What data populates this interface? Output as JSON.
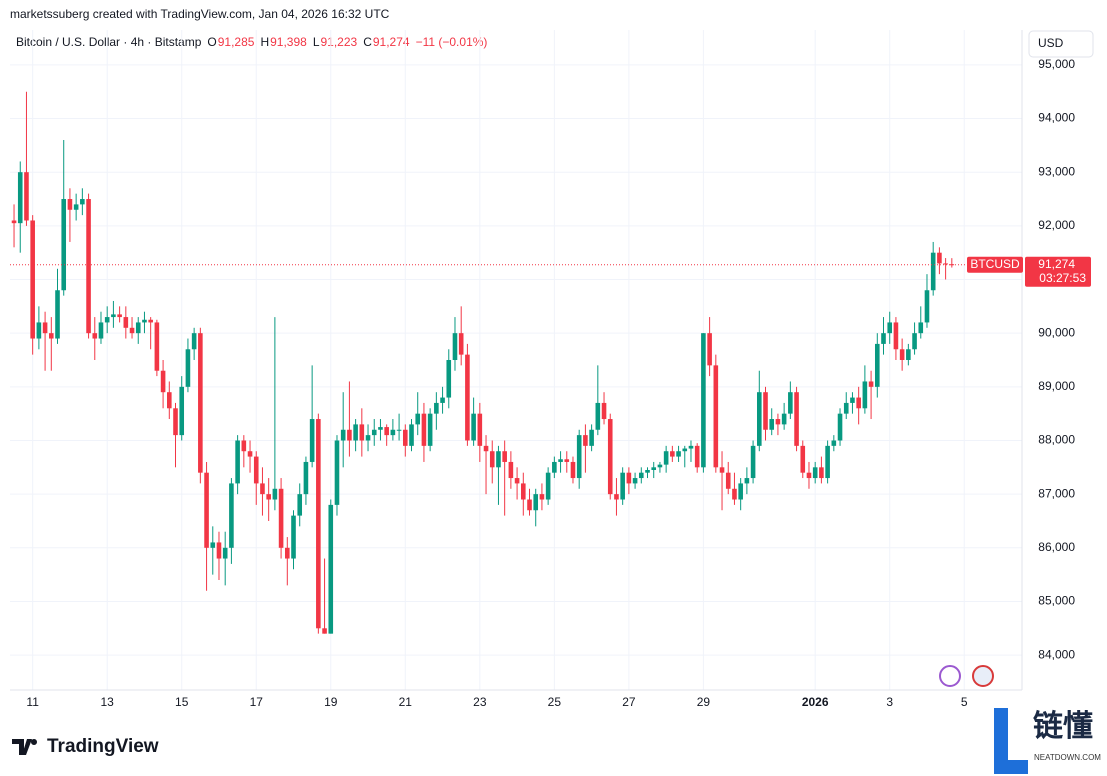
{
  "chart_data": {
    "type": "candlestick",
    "header": "marketssuberg created with TradingView.com, Jan 04, 2026 16:32 UTC",
    "title": "Bitcoin / U.S. Dollar · 4h · Bitstamp",
    "legend": {
      "o_label": "O",
      "o": "91,285",
      "h_label": "H",
      "h": "91,398",
      "l_label": "L",
      "l": "91,223",
      "c_label": "C",
      "c": "91,274",
      "change": "−11 (−0.01%)"
    },
    "currency": "USD",
    "symbol": "BTCUSD",
    "last_price": {
      "value": 91274,
      "label": "91,274"
    },
    "countdown": "03:27:53",
    "logo": "TradingView",
    "watermark": "链懂",
    "watermark_sub": "NEATDOWN.COM",
    "up_color": "#089981",
    "down_color": "#f23645",
    "grid": true,
    "xlim": [
      -0.65,
      162.3
    ],
    "ylim": [
      83350,
      95650
    ],
    "xticks": [
      {
        "value": 3,
        "label": "11"
      },
      {
        "value": 15,
        "label": "13"
      },
      {
        "value": 27,
        "label": "15"
      },
      {
        "value": 39,
        "label": "17"
      },
      {
        "value": 51,
        "label": "19"
      },
      {
        "value": 63,
        "label": "21"
      },
      {
        "value": 75,
        "label": "23"
      },
      {
        "value": 87,
        "label": "25"
      },
      {
        "value": 99,
        "label": "27"
      },
      {
        "value": 111,
        "label": "29"
      },
      {
        "value": 129,
        "label": "2026"
      },
      {
        "value": 141,
        "label": "3"
      },
      {
        "value": 153,
        "label": "5"
      }
    ],
    "yticks": [
      {
        "value": 84000,
        "label": "84,000"
      },
      {
        "value": 85000,
        "label": "85,000"
      },
      {
        "value": 86000,
        "label": "86,000"
      },
      {
        "value": 87000,
        "label": "87,000"
      },
      {
        "value": 88000,
        "label": "88,000"
      },
      {
        "value": 89000,
        "label": "89,000"
      },
      {
        "value": 90000,
        "label": "90,000"
      },
      {
        "value": 91000,
        "label": "91,000"
      },
      {
        "value": 92000,
        "label": "92,000"
      },
      {
        "value": 93000,
        "label": "93,000"
      },
      {
        "value": 94000,
        "label": "94,000"
      },
      {
        "value": 95000,
        "label": "95,000"
      }
    ],
    "ohlc": [
      [
        92100,
        92400,
        91600,
        92050
      ],
      [
        92050,
        93200,
        91500,
        93000
      ],
      [
        93000,
        94500,
        92000,
        92100
      ],
      [
        92100,
        92200,
        89600,
        89900
      ],
      [
        89900,
        90500,
        89700,
        90200
      ],
      [
        90200,
        90400,
        89300,
        90000
      ],
      [
        90000,
        90300,
        89300,
        89900
      ],
      [
        89900,
        91200,
        89800,
        90800
      ],
      [
        90800,
        93600,
        90700,
        92500
      ],
      [
        92500,
        92700,
        91700,
        92300
      ],
      [
        92300,
        92600,
        92100,
        92400
      ],
      [
        92400,
        92700,
        92200,
        92500
      ],
      [
        92500,
        92600,
        89900,
        90000
      ],
      [
        90000,
        90300,
        89500,
        89900
      ],
      [
        89900,
        90400,
        89800,
        90200
      ],
      [
        90200,
        90500,
        90000,
        90300
      ],
      [
        90300,
        90600,
        90100,
        90350
      ],
      [
        90350,
        90500,
        90200,
        90300
      ],
      [
        90300,
        90500,
        89900,
        90100
      ],
      [
        90100,
        90300,
        89900,
        90000
      ],
      [
        90000,
        90300,
        89800,
        90200
      ],
      [
        90200,
        90400,
        90000,
        90250
      ],
      [
        90250,
        90300,
        89700,
        90200
      ],
      [
        90200,
        90250,
        89200,
        89300
      ],
      [
        89300,
        89500,
        88600,
        88900
      ],
      [
        88900,
        89100,
        88400,
        88600
      ],
      [
        88600,
        88700,
        87500,
        88100
      ],
      [
        88100,
        89200,
        88000,
        89000
      ],
      [
        89000,
        89900,
        88900,
        89700
      ],
      [
        89700,
        90100,
        89500,
        90000
      ],
      [
        90000,
        90100,
        87200,
        87400
      ],
      [
        87400,
        87600,
        85200,
        86000
      ],
      [
        86000,
        86400,
        85500,
        86100
      ],
      [
        86100,
        86300,
        85400,
        85800
      ],
      [
        85800,
        86300,
        85300,
        86000
      ],
      [
        86000,
        87300,
        85700,
        87200
      ],
      [
        87200,
        88100,
        87000,
        88000
      ],
      [
        88000,
        88100,
        87500,
        87800
      ],
      [
        87800,
        88000,
        87400,
        87700
      ],
      [
        87700,
        87800,
        86800,
        87200
      ],
      [
        87200,
        87500,
        86600,
        87000
      ],
      [
        87000,
        87300,
        86500,
        86900
      ],
      [
        86900,
        90300,
        86700,
        87100
      ],
      [
        87100,
        87300,
        85800,
        86000
      ],
      [
        86000,
        86200,
        85300,
        85800
      ],
      [
        85800,
        86700,
        85600,
        86600
      ],
      [
        86600,
        87200,
        86400,
        87000
      ],
      [
        87000,
        87700,
        86800,
        87600
      ],
      [
        87600,
        89400,
        87500,
        88400
      ],
      [
        88400,
        88500,
        84400,
        84500
      ],
      [
        84500,
        85800,
        84400,
        84400
      ],
      [
        84400,
        86900,
        84400,
        86800
      ],
      [
        86800,
        88100,
        86600,
        88000
      ],
      [
        88000,
        88900,
        87500,
        88200
      ],
      [
        88200,
        89100,
        87700,
        88000
      ],
      [
        88000,
        88400,
        87800,
        88300
      ],
      [
        88300,
        88600,
        87700,
        88000
      ],
      [
        88000,
        88300,
        87800,
        88100
      ],
      [
        88100,
        88400,
        87900,
        88200
      ],
      [
        88200,
        88400,
        88000,
        88250
      ],
      [
        88250,
        88300,
        87900,
        88100
      ],
      [
        88100,
        88400,
        88000,
        88200
      ],
      [
        88200,
        88500,
        88000,
        88200
      ],
      [
        88200,
        88300,
        87700,
        87900
      ],
      [
        87900,
        88400,
        87800,
        88300
      ],
      [
        88300,
        88900,
        88100,
        88500
      ],
      [
        88500,
        88700,
        87600,
        87900
      ],
      [
        87900,
        88600,
        87800,
        88500
      ],
      [
        88500,
        88900,
        88200,
        88700
      ],
      [
        88700,
        89000,
        88500,
        88800
      ],
      [
        88800,
        89700,
        88600,
        89500
      ],
      [
        89500,
        90300,
        89300,
        90000
      ],
      [
        90000,
        90500,
        89400,
        89600
      ],
      [
        89600,
        89800,
        87900,
        88000
      ],
      [
        88000,
        88800,
        87900,
        88500
      ],
      [
        88500,
        88700,
        87600,
        87900
      ],
      [
        87900,
        88100,
        87000,
        87800
      ],
      [
        87800,
        88000,
        87200,
        87500
      ],
      [
        87500,
        87900,
        86800,
        87800
      ],
      [
        87800,
        88000,
        86600,
        87600
      ],
      [
        87600,
        87800,
        87100,
        87300
      ],
      [
        87300,
        87500,
        86900,
        87200
      ],
      [
        87200,
        87400,
        86600,
        86900
      ],
      [
        86900,
        87100,
        86600,
        86700
      ],
      [
        86700,
        87100,
        86400,
        87000
      ],
      [
        87000,
        87200,
        86700,
        86900
      ],
      [
        86900,
        87500,
        86800,
        87400
      ],
      [
        87400,
        87700,
        87300,
        87600
      ],
      [
        87600,
        87800,
        87400,
        87650
      ],
      [
        87650,
        87800,
        87400,
        87600
      ],
      [
        87600,
        87700,
        87200,
        87300
      ],
      [
        87300,
        88200,
        87100,
        88100
      ],
      [
        88100,
        88300,
        87400,
        87900
      ],
      [
        87900,
        88300,
        87800,
        88200
      ],
      [
        88200,
        89400,
        88100,
        88700
      ],
      [
        88700,
        88900,
        88300,
        88400
      ],
      [
        88400,
        88500,
        86900,
        87000
      ],
      [
        87000,
        87300,
        86600,
        86900
      ],
      [
        86900,
        87500,
        86800,
        87400
      ],
      [
        87400,
        87500,
        87000,
        87200
      ],
      [
        87200,
        87400,
        87100,
        87300
      ],
      [
        87300,
        87500,
        87200,
        87400
      ],
      [
        87400,
        87500,
        87300,
        87450
      ],
      [
        87450,
        87600,
        87300,
        87500
      ],
      [
        87500,
        87600,
        87400,
        87550
      ],
      [
        87550,
        87900,
        87400,
        87800
      ],
      [
        87800,
        87900,
        87600,
        87700
      ],
      [
        87700,
        87900,
        87600,
        87800
      ],
      [
        87800,
        87900,
        87500,
        87850
      ],
      [
        87850,
        88000,
        87600,
        87900
      ],
      [
        87900,
        87950,
        87400,
        87500
      ],
      [
        87500,
        90000,
        87400,
        90000
      ],
      [
        90000,
        90300,
        89200,
        89400
      ],
      [
        89400,
        89600,
        87400,
        87500
      ],
      [
        87500,
        87800,
        86700,
        87400
      ],
      [
        87400,
        87600,
        87000,
        87100
      ],
      [
        87100,
        87400,
        86800,
        86900
      ],
      [
        86900,
        87300,
        86700,
        87200
      ],
      [
        87200,
        87500,
        87000,
        87300
      ],
      [
        87300,
        88000,
        87200,
        87900
      ],
      [
        87900,
        89300,
        87800,
        88900
      ],
      [
        88900,
        89000,
        88000,
        88200
      ],
      [
        88200,
        88600,
        88100,
        88400
      ],
      [
        88400,
        88500,
        88100,
        88300
      ],
      [
        88300,
        88700,
        88200,
        88500
      ],
      [
        88500,
        89100,
        88400,
        88900
      ],
      [
        88900,
        89000,
        87800,
        87900
      ],
      [
        87900,
        88000,
        87300,
        87400
      ],
      [
        87400,
        87600,
        87100,
        87300
      ],
      [
        87300,
        87600,
        87200,
        87500
      ],
      [
        87500,
        87700,
        87200,
        87300
      ],
      [
        87300,
        88000,
        87200,
        87900
      ],
      [
        87900,
        88100,
        87800,
        88000
      ],
      [
        88000,
        88600,
        87900,
        88500
      ],
      [
        88500,
        88900,
        88400,
        88700
      ],
      [
        88700,
        88900,
        88500,
        88800
      ],
      [
        88800,
        89000,
        88300,
        88600
      ],
      [
        88600,
        89400,
        88500,
        89100
      ],
      [
        89100,
        89300,
        88400,
        89000
      ],
      [
        89000,
        90000,
        88800,
        89800
      ],
      [
        89800,
        90300,
        89600,
        90000
      ],
      [
        90000,
        90400,
        89800,
        90200
      ],
      [
        90200,
        90300,
        89500,
        89700
      ],
      [
        89700,
        89900,
        89300,
        89500
      ],
      [
        89500,
        89800,
        89400,
        89700
      ],
      [
        89700,
        90200,
        89600,
        90000
      ],
      [
        90000,
        90500,
        89900,
        90200
      ],
      [
        90200,
        91100,
        90100,
        90800
      ],
      [
        90800,
        91700,
        90700,
        91500
      ],
      [
        91500,
        91600,
        91100,
        91300
      ],
      [
        91300,
        91400,
        91000,
        91285
      ],
      [
        91285,
        91398,
        91223,
        91274
      ]
    ]
  }
}
